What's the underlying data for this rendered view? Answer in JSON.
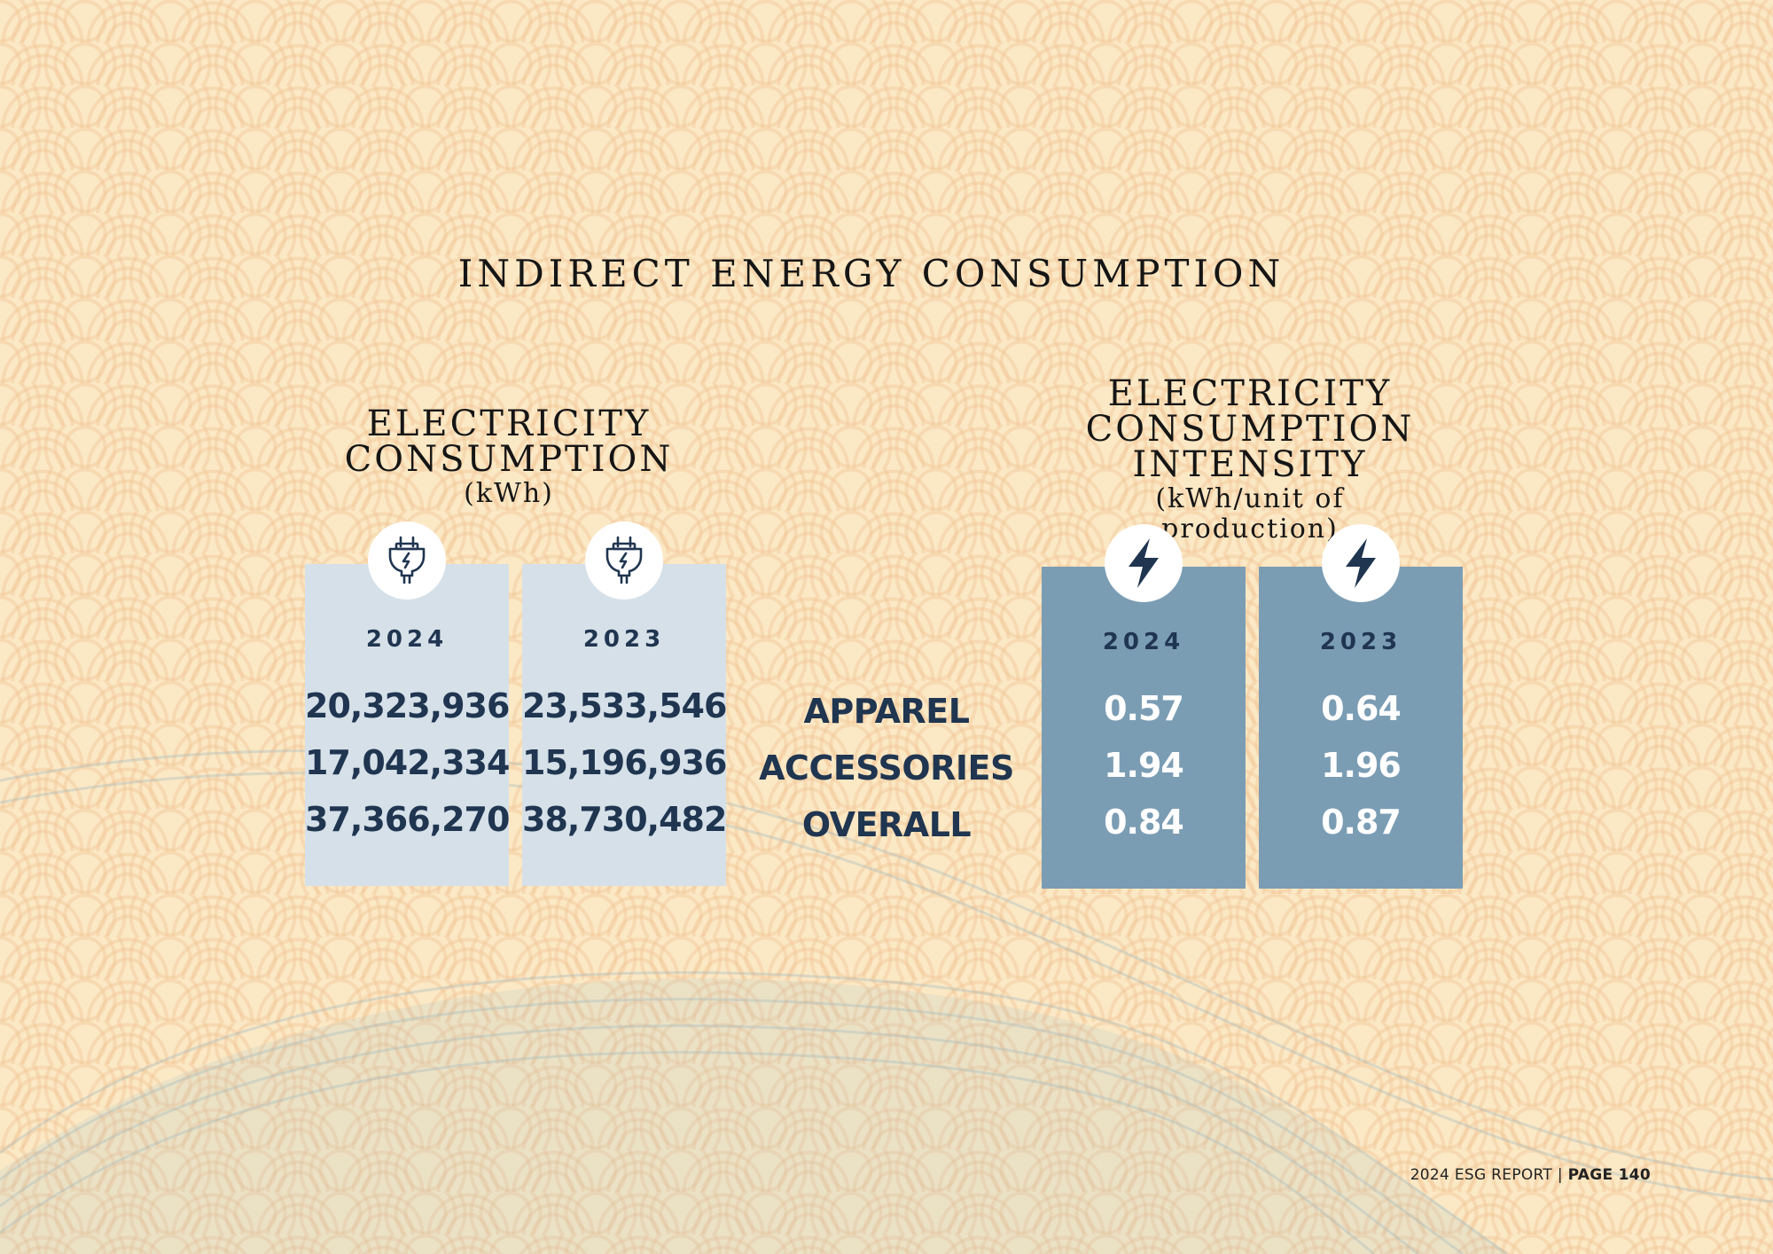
{
  "title": "INDIRECT ENERGY CONSUMPTION",
  "left_section": {
    "title_line1": "ELECTRICITY",
    "title_line2": "CONSUMPTION",
    "unit": "(kWh)",
    "columns": [
      {
        "year": "2024",
        "icon": "power-plug-icon",
        "values": [
          "20,323,936",
          "17,042,334",
          "37,366,270"
        ]
      },
      {
        "year": "2023",
        "icon": "power-plug-icon",
        "values": [
          "23,533,546",
          "15,196,936",
          "38,730,482"
        ]
      }
    ]
  },
  "row_labels": [
    "APPAREL",
    "ACCESSORIES",
    "OVERALL"
  ],
  "right_section": {
    "title_line1": "ELECTRICITY CONSUMPTION",
    "title_line2": "INTENSITY",
    "unit_line1": "(kWh/unit of",
    "unit_line2": "production)",
    "columns": [
      {
        "year": "2024",
        "icon": "lightning-bolt-icon",
        "values": [
          "0.57",
          "1.94",
          "0.84"
        ]
      },
      {
        "year": "2023",
        "icon": "lightning-bolt-icon",
        "values": [
          "0.64",
          "1.96",
          "0.87"
        ]
      }
    ]
  },
  "footer": {
    "report": "2024 ESG REPORT |",
    "page": "PAGE 140"
  },
  "colors": {
    "background": "#fbe8c5",
    "light_column": "#d6e0e8",
    "dark_column": "#7b9db4",
    "navy_text": "#1f3550"
  }
}
